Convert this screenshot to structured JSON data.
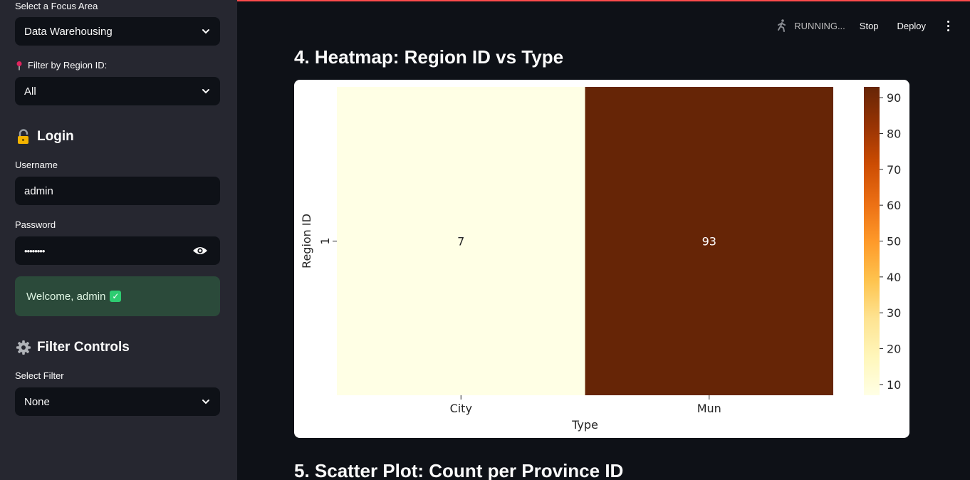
{
  "sidebar": {
    "focus_label": "Select a Focus Area",
    "focus_value": "Data Warehousing",
    "region_label": "Filter by Region ID:",
    "region_value": "All",
    "login_heading": "Login",
    "username_label": "Username",
    "username_value": "admin",
    "password_label": "Password",
    "password_value": "••••••••",
    "welcome_text": "Welcome, admin",
    "filter_heading": "Filter Controls",
    "select_filter_label": "Select Filter",
    "select_filter_value": "None"
  },
  "toolbar": {
    "status": "RUNNING...",
    "stop": "Stop",
    "deploy": "Deploy"
  },
  "main": {
    "heading4": "4. Heatmap: Region ID vs Type",
    "heading5": "5. Scatter Plot: Count per Province ID"
  },
  "chart_data": {
    "type": "heatmap",
    "xlabel": "Type",
    "ylabel": "Region ID",
    "x_categories": [
      "City",
      "Mun"
    ],
    "y_categories": [
      "1"
    ],
    "values": [
      [
        7,
        93
      ]
    ],
    "colorbar_ticks": [
      10,
      20,
      30,
      40,
      50,
      60,
      70,
      80,
      90
    ],
    "colormap": "YlOrBr",
    "vmin": 7,
    "vmax": 93,
    "colors": {
      "low": "#ffffe5",
      "high": "#662506"
    }
  }
}
